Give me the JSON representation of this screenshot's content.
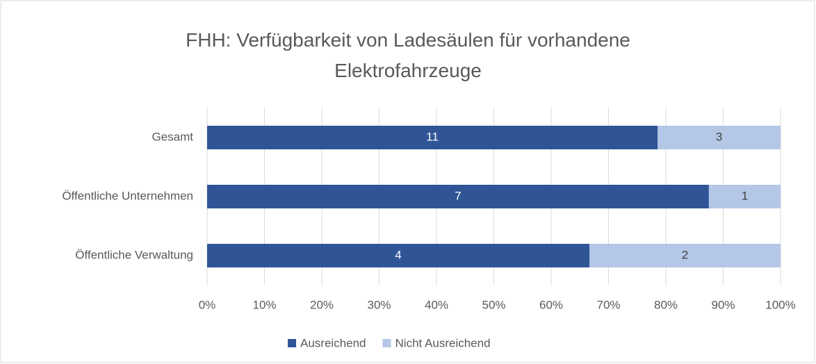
{
  "chart_data": {
    "type": "bar",
    "orientation": "horizontal",
    "stacking": "percent",
    "title": "FHH: Verfügbarkeit von Ladesäulen für vorhandene Elektrofahrzeuge",
    "categories": [
      "Gesamt",
      "Öffentliche Unternehmen",
      "Öffentliche Verwaltung"
    ],
    "series": [
      {
        "name": "Ausreichend",
        "color": "#2f5597",
        "label_color": "#ffffff",
        "values": [
          11,
          7,
          4
        ]
      },
      {
        "name": "Nicht Ausreichend",
        "color": "#b4c7e7",
        "label_color": "#404040",
        "values": [
          3,
          1,
          2
        ]
      }
    ],
    "xlim": [
      0,
      100
    ],
    "xticks": [
      {
        "value": 0,
        "label": "0%"
      },
      {
        "value": 10,
        "label": "10%"
      },
      {
        "value": 20,
        "label": "20%"
      },
      {
        "value": 30,
        "label": "30%"
      },
      {
        "value": 40,
        "label": "40%"
      },
      {
        "value": 50,
        "label": "50%"
      },
      {
        "value": 60,
        "label": "60%"
      },
      {
        "value": 70,
        "label": "70%"
      },
      {
        "value": 80,
        "label": "80%"
      },
      {
        "value": 90,
        "label": "90%"
      },
      {
        "value": 100,
        "label": "100%"
      }
    ],
    "grid": true,
    "legend": "bottom"
  }
}
